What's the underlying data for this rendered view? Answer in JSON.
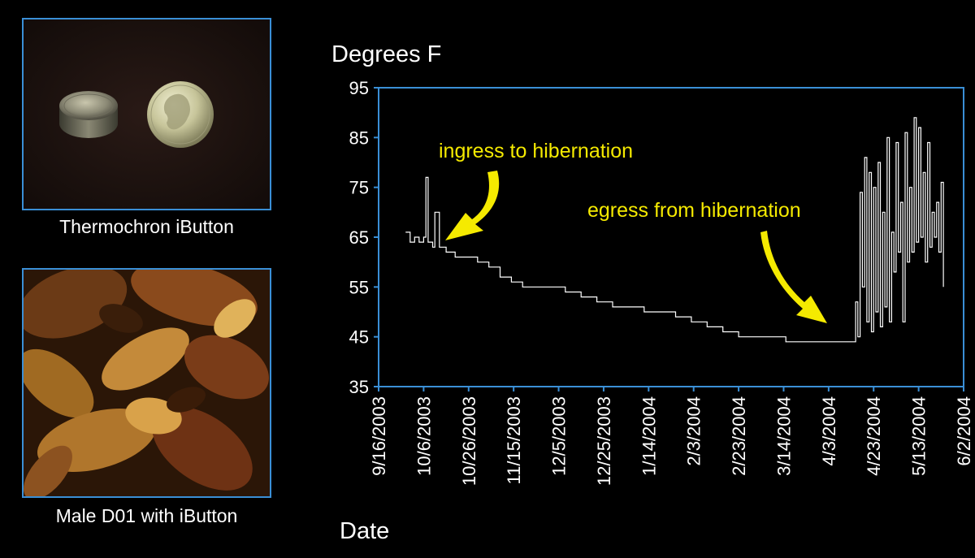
{
  "photos": {
    "top_caption": "Thermochron iButton",
    "bottom_caption": "Male D01 with iButton"
  },
  "chart_data": {
    "type": "line",
    "title": "",
    "ylabel": "Degrees F",
    "xlabel": "Date",
    "ylim": [
      35,
      95
    ],
    "yticks": [
      35,
      45,
      55,
      65,
      75,
      85,
      95
    ],
    "xlim": [
      "9/16/2003",
      "6/2/2004"
    ],
    "xticks": [
      "9/16/2003",
      "10/6/2003",
      "10/26/2003",
      "11/15/2003",
      "12/5/2003",
      "12/25/2003",
      "1/14/2004",
      "2/3/2004",
      "2/23/2004",
      "3/14/2004",
      "4/3/2004",
      "4/23/2004",
      "5/13/2004",
      "6/2/2004"
    ],
    "grid": false,
    "line_color": "#ffffff",
    "frame_color": "#3a8fd6",
    "annotation_color": "#f5ea00",
    "annotations": [
      {
        "text": "ingress to hibernation",
        "x": "10/15/2003",
        "y": 64
      },
      {
        "text": "egress from hibernation",
        "x": "4/13/2004",
        "y": 45
      }
    ],
    "series": [
      {
        "x": [
          "9/28/2003",
          "9/30/2003",
          "10/2/2003",
          "10/4/2003",
          "10/6/2003",
          "10/7/2003",
          "10/8/2003",
          "10/9/2003",
          "10/10/2003",
          "10/11/2003",
          "10/13/2003",
          "10/16/2003",
          "10/20/2003",
          "10/25/2003",
          "10/30/2003",
          "11/4/2003",
          "11/9/2003",
          "11/14/2003",
          "11/19/2003",
          "11/24/2003",
          "12/1/2003",
          "12/8/2003",
          "12/15/2003",
          "12/22/2003",
          "12/29/2003",
          "1/5/2004",
          "1/12/2004",
          "1/19/2004",
          "1/26/2004",
          "2/2/2004",
          "2/9/2004",
          "2/16/2004",
          "2/23/2004",
          "3/1/2004",
          "3/8/2004",
          "3/15/2004",
          "3/22/2004",
          "3/29/2004",
          "4/5/2004",
          "4/10/2004",
          "4/12/2004",
          "4/14/2004",
          "4/15/2004",
          "4/16/2004",
          "4/17/2004",
          "4/18/2004",
          "4/19/2004",
          "4/20/2004",
          "4/21/2004",
          "4/22/2004",
          "4/23/2004",
          "4/24/2004",
          "4/25/2004",
          "4/26/2004",
          "4/27/2004",
          "4/28/2004",
          "4/29/2004",
          "4/30/2004",
          "5/1/2004",
          "5/2/2004",
          "5/3/2004",
          "5/4/2004",
          "5/5/2004",
          "5/6/2004",
          "5/7/2004",
          "5/8/2004",
          "5/9/2004",
          "5/10/2004",
          "5/11/2004",
          "5/12/2004",
          "5/13/2004",
          "5/14/2004",
          "5/15/2004",
          "5/16/2004",
          "5/17/2004",
          "5/18/2004",
          "5/19/2004",
          "5/20/2004",
          "5/21/2004",
          "5/22/2004",
          "5/23/2004",
          "5/24/2004"
        ],
        "values": [
          66,
          64,
          65,
          64,
          65,
          77,
          64,
          64,
          63,
          70,
          63,
          62,
          61,
          61,
          60,
          59,
          57,
          56,
          55,
          55,
          55,
          54,
          53,
          52,
          51,
          51,
          50,
          50,
          49,
          48,
          47,
          46,
          45,
          45,
          45,
          44,
          44,
          44,
          44,
          44,
          44,
          44,
          52,
          45,
          74,
          55,
          81,
          48,
          78,
          46,
          75,
          50,
          80,
          47,
          70,
          51,
          85,
          48,
          66,
          58,
          84,
          62,
          72,
          48,
          86,
          60,
          75,
          62,
          89,
          64,
          87,
          65,
          78,
          60,
          84,
          63,
          70,
          65,
          72,
          62,
          76,
          55
        ]
      }
    ]
  }
}
